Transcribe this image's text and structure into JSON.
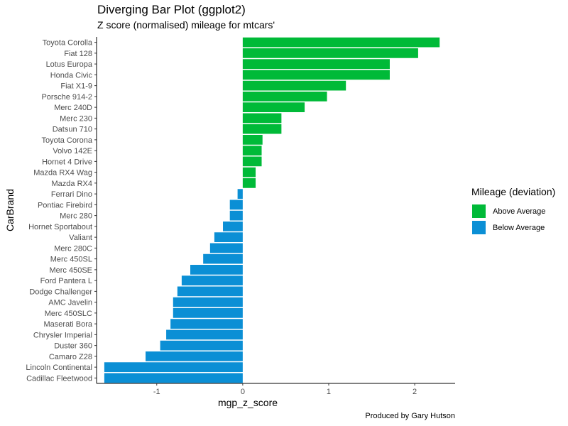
{
  "chart_data": {
    "type": "bar",
    "orientation": "horizontal",
    "title": "Diverging Bar Plot (ggplot2)",
    "subtitle": "Z score (normalised) mileage for mtcars'",
    "caption": "Produced by Gary Hutson",
    "xlabel": "mgp_z_score",
    "ylabel": "CarBrand",
    "xlim": [
      -1.7,
      2.47
    ],
    "x_ticks": [
      -1,
      0,
      1,
      2
    ],
    "grid": false,
    "legend_position": "right",
    "legend": {
      "title": "Mileage (deviation)",
      "items": [
        {
          "label": "Above Average",
          "color": "#00BA38"
        },
        {
          "label": "Below Average",
          "color": "#0B8FD5"
        }
      ]
    },
    "categories": [
      "Toyota Corolla",
      "Fiat 128",
      "Lotus Europa",
      "Honda Civic",
      "Fiat X1-9",
      "Porsche 914-2",
      "Merc 240D",
      "Merc 230",
      "Datsun 710",
      "Toyota Corona",
      "Volvo 142E",
      "Hornet 4 Drive",
      "Mazda RX4 Wag",
      "Mazda RX4",
      "Ferrari Dino",
      "Pontiac Firebird",
      "Merc 280",
      "Hornet Sportabout",
      "Valiant",
      "Merc 280C",
      "Merc 450SL",
      "Merc 450SE",
      "Ford Pantera L",
      "Dodge Challenger",
      "AMC Javelin",
      "Merc 450SLC",
      "Maserati Bora",
      "Chrysler Imperial",
      "Duster 360",
      "Camaro Z28",
      "Lincoln Continental",
      "Cadillac Fleetwood"
    ],
    "values": [
      2.29,
      2.04,
      1.71,
      1.71,
      1.2,
      0.98,
      0.72,
      0.45,
      0.45,
      0.23,
      0.22,
      0.22,
      0.15,
      0.15,
      -0.06,
      -0.15,
      -0.15,
      -0.23,
      -0.33,
      -0.38,
      -0.46,
      -0.61,
      -0.71,
      -0.76,
      -0.81,
      -0.81,
      -0.84,
      -0.89,
      -0.96,
      -1.13,
      -1.61,
      -1.61
    ],
    "colors": {
      "above": "#00BA38",
      "below": "#0B8FD5"
    }
  }
}
